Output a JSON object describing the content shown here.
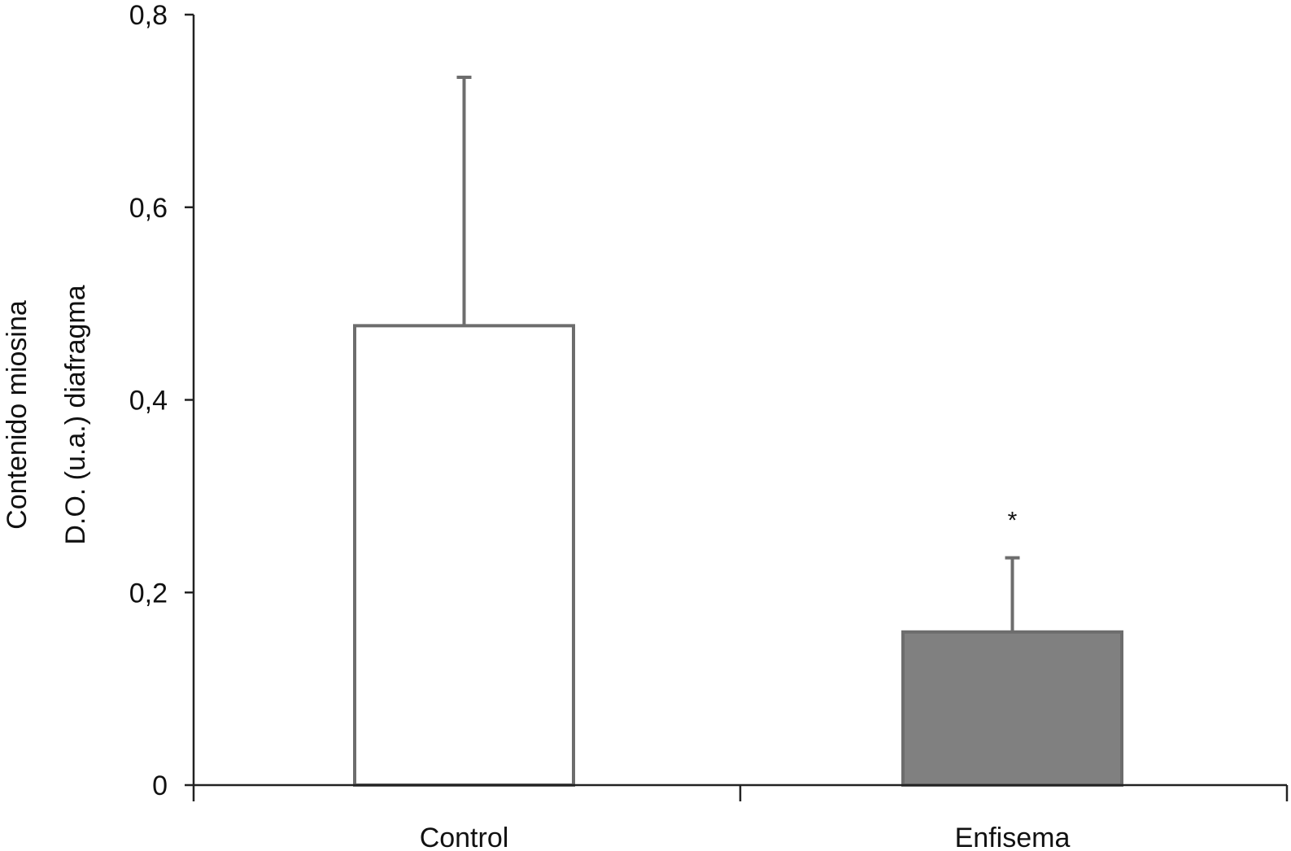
{
  "chart_data": {
    "type": "bar",
    "categories": [
      "Control",
      "Enfisema"
    ],
    "series": [
      {
        "values": [
          0.477,
          0.159
        ],
        "errors": [
          0.258,
          0.077
        ]
      }
    ],
    "bar_colors": [
      "#ffffff",
      "#808080"
    ],
    "bar_edge_color": "#6d6d6d",
    "axis_color": "#222222",
    "ylabel_lines": [
      "Contenido miosina",
      "D.O. (u.a.) diafragma"
    ],
    "xlabel": "",
    "ylim": [
      0,
      0.8
    ],
    "yticks": [
      0,
      0.2,
      0.4,
      0.6,
      0.8
    ],
    "ytick_labels": [
      "0",
      "0,2",
      "0,4",
      "0,6",
      "0,8"
    ],
    "annotations": [
      {
        "category": "Enfisema",
        "text": "*"
      }
    ],
    "grid": false
  }
}
